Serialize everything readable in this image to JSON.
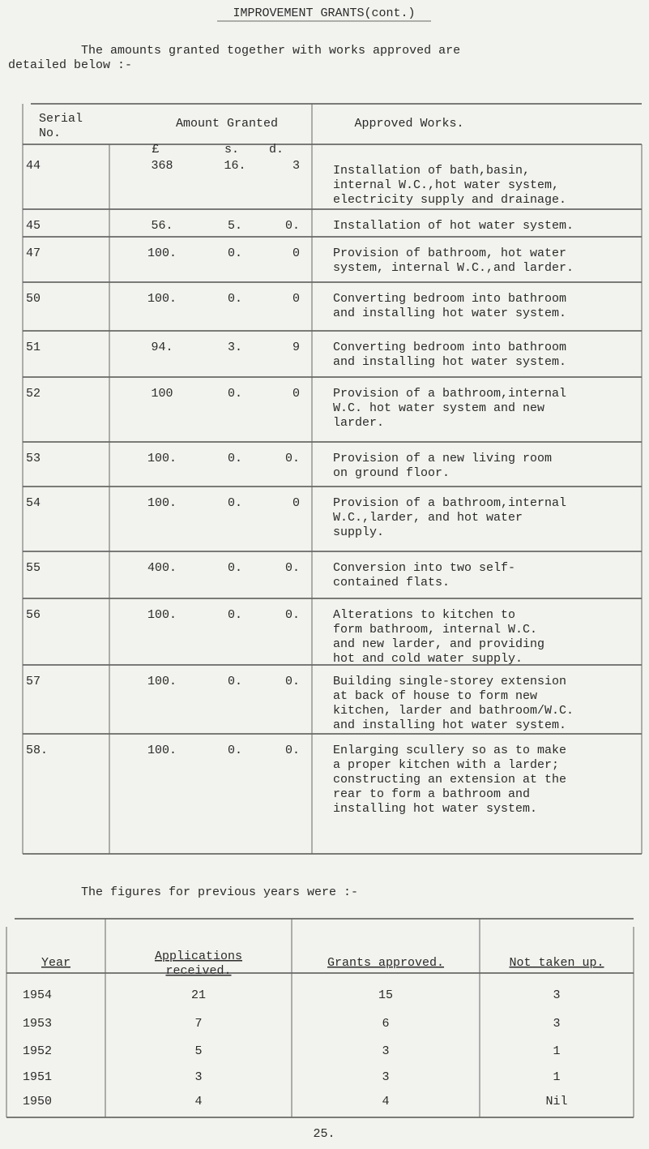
{
  "title": "IMPROVEMENT GRANTS(cont.)",
  "intro": [
    "The amounts granted together with works approved are",
    "detailed below :-"
  ],
  "table1": {
    "header": [
      [
        "Serial",
        "No."
      ],
      [
        "Amount Granted"
      ],
      [
        "Approved Works."
      ]
    ],
    "units": [
      "£",
      "s.",
      "d."
    ],
    "rows": [
      {
        "serial": "44",
        "pounds": "368",
        "shillings": "16.",
        "pence": "3",
        "works": [
          "Installation of bath,basin,",
          "internal W.C.,hot water system,",
          "electricity supply and drainage."
        ]
      },
      {
        "serial": "45",
        "pounds": "56.",
        "shillings": "5.",
        "pence": "0.",
        "works": [
          "Installation of hot water system."
        ]
      },
      {
        "serial": "47",
        "pounds": "100.",
        "shillings": "0.",
        "pence": "0",
        "works": [
          "Provision of bathroom, hot water",
          "system, internal W.C.,and larder."
        ]
      },
      {
        "serial": "50",
        "pounds": "100.",
        "shillings": "0.",
        "pence": "0",
        "works": [
          "Converting bedroom into bathroom",
          "and installing hot water system."
        ]
      },
      {
        "serial": "51",
        "pounds": "94.",
        "shillings": "3.",
        "pence": "9",
        "works": [
          "Converting bedroom into bathroom",
          "and installing hot water system."
        ]
      },
      {
        "serial": "52",
        "pounds": "100",
        "shillings": "0.",
        "pence": "0",
        "works": [
          "Provision of a bathroom,internal",
          "W.C. hot water system and new",
          "larder."
        ]
      },
      {
        "serial": "53",
        "pounds": "100.",
        "shillings": "0.",
        "pence": "0.",
        "works": [
          "Provision of a new living room",
          "on ground floor."
        ]
      },
      {
        "serial": "54",
        "pounds": "100.",
        "shillings": "0.",
        "pence": "0",
        "works": [
          "Provision of a bathroom,internal",
          "W.C.,larder, and hot water",
          "supply."
        ]
      },
      {
        "serial": "55",
        "pounds": "400.",
        "shillings": "0.",
        "pence": "0.",
        "works": [
          "Conversion into two self-",
          "contained flats."
        ]
      },
      {
        "serial": "56",
        "pounds": "100.",
        "shillings": "0.",
        "pence": "0.",
        "works": [
          "Alterations to kitchen to",
          "form bathroom, internal W.C.",
          "and new larder, and providing",
          "hot and cold water supply."
        ]
      },
      {
        "serial": "57",
        "pounds": "100.",
        "shillings": "0.",
        "pence": "0.",
        "works": [
          "Building single-storey extension",
          "at back of house to form new",
          "kitchen, larder and bathroom/W.C.",
          "and installing hot water system."
        ]
      },
      {
        "serial": "58.",
        "pounds": "100.",
        "shillings": "0.",
        "pence": "0.",
        "works": [
          "Enlarging scullery so as to make",
          "a proper kitchen with a larder;",
          "constructing an extension at the",
          "rear to form a bathroom and",
          "installing hot water system."
        ]
      }
    ]
  },
  "previous_intro": "The figures for previous years were :-",
  "table2": {
    "header": [
      [
        "Year"
      ],
      [
        "Applications",
        "received."
      ],
      [
        "Grants approved."
      ],
      [
        "Not taken up."
      ]
    ],
    "rows": [
      [
        "1954",
        "21",
        "15",
        "3"
      ],
      [
        "1953",
        "7",
        "6",
        "3"
      ],
      [
        "1952",
        "5",
        "3",
        "1"
      ],
      [
        "1951",
        "3",
        "3",
        "1"
      ],
      [
        "1950",
        "4",
        "4",
        "Nil"
      ]
    ]
  },
  "page_number": "25."
}
